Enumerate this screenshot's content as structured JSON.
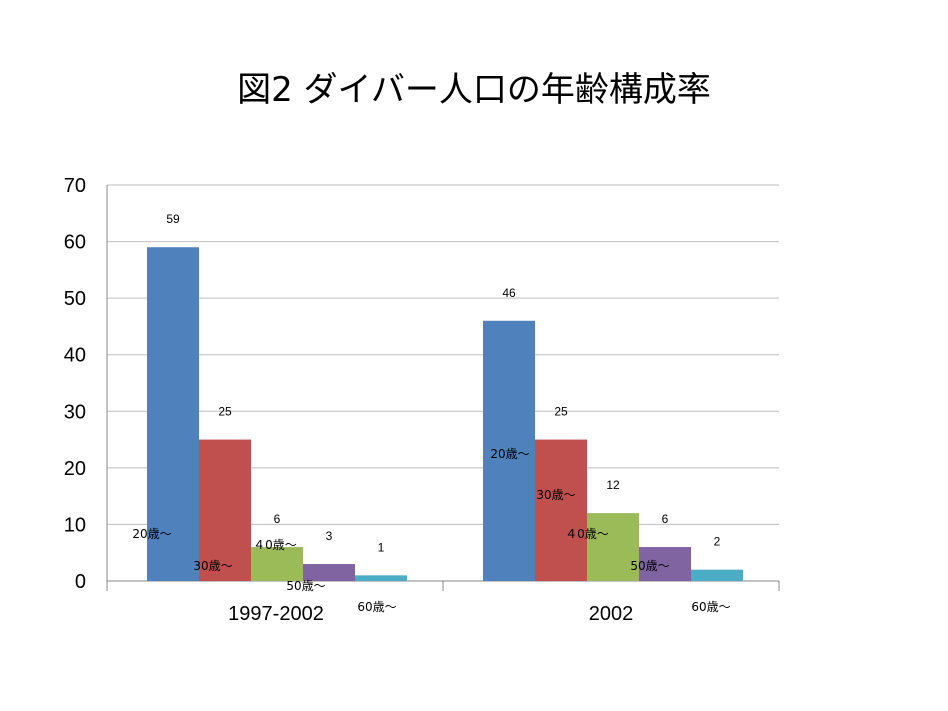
{
  "chart_data": {
    "type": "bar",
    "title": "図2  ダイバー人口の年齢構成率",
    "categories": [
      "1997-2002",
      "2002"
    ],
    "series": [
      {
        "key": "20",
        "values": [
          59,
          46
        ],
        "color": "#4f81bd"
      },
      {
        "key": "30",
        "values": [
          25,
          25
        ],
        "color": "#c0504d"
      },
      {
        "key": "40",
        "values": [
          6,
          12
        ],
        "color": "#9bbb59"
      },
      {
        "key": "50",
        "values": [
          3,
          6
        ],
        "color": "#8064a2"
      },
      {
        "key": "60",
        "values": [
          1,
          2
        ],
        "color": "#4bacc6"
      }
    ],
    "annotations": [
      [
        "20歳～",
        "30歳～",
        "４0歳～",
        "50歳～",
        "60歳～"
      ],
      [
        "20歳～",
        "30歳～",
        "４0歳～",
        "50歳～",
        "60歳～"
      ]
    ],
    "yticks": [
      0,
      10,
      20,
      30,
      40,
      50,
      60,
      70
    ],
    "ylim": [
      0,
      70
    ],
    "grid": true,
    "legend": "none"
  }
}
